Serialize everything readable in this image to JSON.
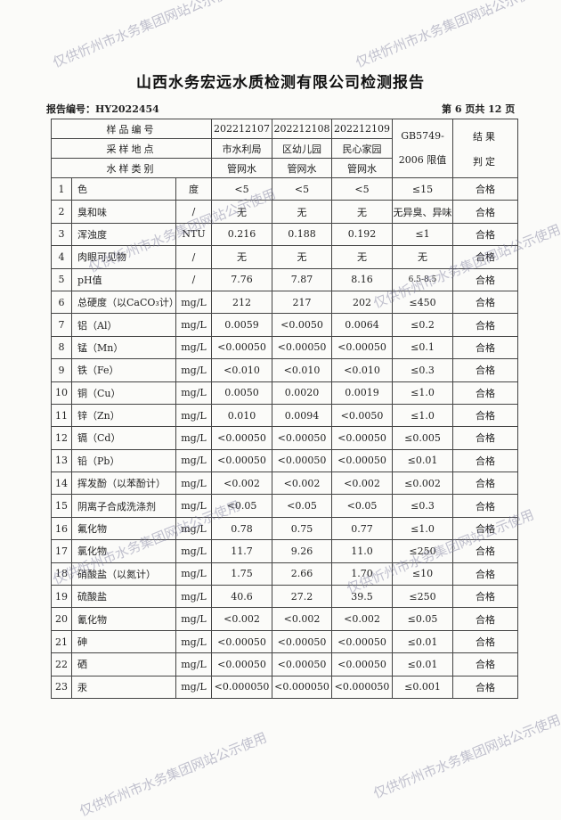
{
  "title": "山西水务宏远水质检测有限公司检测报告",
  "report_no": "报告编号：HY2022454",
  "page_info": "第 6 页共 12 页",
  "watermark": "仅供忻州市水务集团网站公示使用",
  "header": {
    "sample_no_label": "样品编号",
    "location_label": "采样地点",
    "type_label": "水样类别",
    "limit_label_1": "GB5749-",
    "limit_label_2": "2006 限值",
    "result_label_1": "结果",
    "result_label_2": "判定",
    "samples": [
      {
        "no": "202212107",
        "location": "市水利局",
        "type": "管网水"
      },
      {
        "no": "202212108",
        "location": "区幼儿园",
        "type": "管网水"
      },
      {
        "no": "202212109",
        "location": "民心家园",
        "type": "管网水"
      }
    ]
  },
  "rows": [
    {
      "no": "1",
      "item": "色",
      "unit": "度",
      "v1": "<5",
      "v2": "<5",
      "v3": "<5",
      "limit": "≤15",
      "result": "合格"
    },
    {
      "no": "2",
      "item": "臭和味",
      "unit": "/",
      "v1": "无",
      "v2": "无",
      "v3": "无",
      "limit": "无异臭、异味",
      "result": "合格"
    },
    {
      "no": "3",
      "item": "浑浊度",
      "unit": "NTU",
      "v1": "0.216",
      "v2": "0.188",
      "v3": "0.192",
      "limit": "≤1",
      "result": "合格"
    },
    {
      "no": "4",
      "item": "肉眼可见物",
      "unit": "/",
      "v1": "无",
      "v2": "无",
      "v3": "无",
      "limit": "无",
      "result": "合格"
    },
    {
      "no": "5",
      "item": "pH值",
      "unit": "/",
      "v1": "7.76",
      "v2": "7.87",
      "v3": "8.16",
      "limit": "6.5-8.5",
      "result": "合格"
    },
    {
      "no": "6",
      "item": "总硬度（以CaCO₃计）",
      "unit": "mg/L",
      "v1": "212",
      "v2": "217",
      "v3": "202",
      "limit": "≤450",
      "result": "合格"
    },
    {
      "no": "7",
      "item": "铝（Al）",
      "unit": "mg/L",
      "v1": "0.0059",
      "v2": "<0.0050",
      "v3": "0.0064",
      "limit": "≤0.2",
      "result": "合格"
    },
    {
      "no": "8",
      "item": "锰（Mn）",
      "unit": "mg/L",
      "v1": "<0.00050",
      "v2": "<0.00050",
      "v3": "<0.00050",
      "limit": "≤0.1",
      "result": "合格"
    },
    {
      "no": "9",
      "item": "铁（Fe）",
      "unit": "mg/L",
      "v1": "<0.010",
      "v2": "<0.010",
      "v3": "<0.010",
      "limit": "≤0.3",
      "result": "合格"
    },
    {
      "no": "10",
      "item": "铜（Cu）",
      "unit": "mg/L",
      "v1": "0.0050",
      "v2": "0.0020",
      "v3": "0.0019",
      "limit": "≤1.0",
      "result": "合格"
    },
    {
      "no": "11",
      "item": "锌（Zn）",
      "unit": "mg/L",
      "v1": "0.010",
      "v2": "0.0094",
      "v3": "<0.0050",
      "limit": "≤1.0",
      "result": "合格"
    },
    {
      "no": "12",
      "item": "镉（Cd）",
      "unit": "mg/L",
      "v1": "<0.00050",
      "v2": "<0.00050",
      "v3": "<0.00050",
      "limit": "≤0.005",
      "result": "合格"
    },
    {
      "no": "13",
      "item": "铅（Pb）",
      "unit": "mg/L",
      "v1": "<0.00050",
      "v2": "<0.00050",
      "v3": "<0.00050",
      "limit": "≤0.01",
      "result": "合格"
    },
    {
      "no": "14",
      "item": "挥发酚（以苯酚计）",
      "unit": "mg/L",
      "v1": "<0.002",
      "v2": "<0.002",
      "v3": "<0.002",
      "limit": "≤0.002",
      "result": "合格"
    },
    {
      "no": "15",
      "item": "阴离子合成洗涤剂",
      "unit": "mg/L",
      "v1": "<0.05",
      "v2": "<0.05",
      "v3": "<0.05",
      "limit": "≤0.3",
      "result": "合格"
    },
    {
      "no": "16",
      "item": "氟化物",
      "unit": "mg/L",
      "v1": "0.78",
      "v2": "0.75",
      "v3": "0.77",
      "limit": "≤1.0",
      "result": "合格"
    },
    {
      "no": "17",
      "item": "氯化物",
      "unit": "mg/L",
      "v1": "11.7",
      "v2": "9.26",
      "v3": "11.0",
      "limit": "≤250",
      "result": "合格"
    },
    {
      "no": "18",
      "item": "硝酸盐（以氮计）",
      "unit": "mg/L",
      "v1": "1.75",
      "v2": "2.66",
      "v3": "1.70",
      "limit": "≤10",
      "result": "合格"
    },
    {
      "no": "19",
      "item": "硫酸盐",
      "unit": "mg/L",
      "v1": "40.6",
      "v2": "27.2",
      "v3": "39.5",
      "limit": "≤250",
      "result": "合格"
    },
    {
      "no": "20",
      "item": "氰化物",
      "unit": "mg/L",
      "v1": "<0.002",
      "v2": "<0.002",
      "v3": "<0.002",
      "limit": "≤0.05",
      "result": "合格"
    },
    {
      "no": "21",
      "item": "砷",
      "unit": "mg/L",
      "v1": "<0.00050",
      "v2": "<0.00050",
      "v3": "<0.00050",
      "limit": "≤0.01",
      "result": "合格"
    },
    {
      "no": "22",
      "item": "硒",
      "unit": "mg/L",
      "v1": "<0.00050",
      "v2": "<0.00050",
      "v3": "<0.00050",
      "limit": "≤0.01",
      "result": "合格"
    },
    {
      "no": "23",
      "item": "汞",
      "unit": "mg/L",
      "v1": "<0.000050",
      "v2": "<0.000050",
      "v3": "<0.000050",
      "limit": "≤0.001",
      "result": "合格"
    }
  ]
}
